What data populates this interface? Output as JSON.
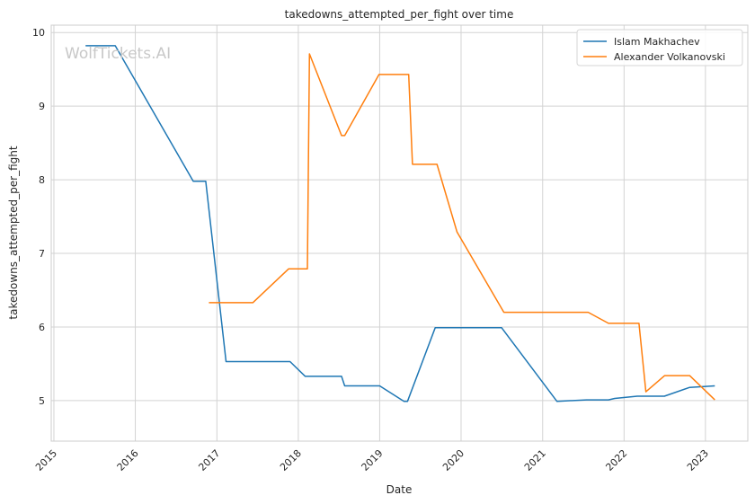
{
  "watermark": "WolfTickets.AI",
  "chart_data": {
    "type": "line",
    "title": "takedowns_attempted_per_fight over time",
    "xlabel": "Date",
    "ylabel": "takedowns_attempted_per_fight",
    "x_ticks": [
      "2015",
      "2016",
      "2017",
      "2018",
      "2019",
      "2020",
      "2021",
      "2022",
      "2023"
    ],
    "y_ticks": [
      5,
      6,
      7,
      8,
      9,
      10
    ],
    "xlim": [
      "2014-12-20",
      "2023-07-10"
    ],
    "ylim": [
      4.45,
      10.1
    ],
    "grid": true,
    "legend_position": "top-right",
    "series": [
      {
        "name": "Islam Makhachev",
        "color": "#1f77b4",
        "points": [
          [
            "2015-05-23",
            9.82
          ],
          [
            "2015-10-03",
            9.82
          ],
          [
            "2016-09-17",
            7.98
          ],
          [
            "2016-11-12",
            7.98
          ],
          [
            "2017-02-11",
            5.53
          ],
          [
            "2017-11-25",
            5.53
          ],
          [
            "2018-02-01",
            5.33
          ],
          [
            "2018-07-14",
            5.33
          ],
          [
            "2018-07-28",
            5.2
          ],
          [
            "2019-01-01",
            5.2
          ],
          [
            "2019-04-20",
            4.99
          ],
          [
            "2019-05-06",
            4.99
          ],
          [
            "2019-09-07",
            5.99
          ],
          [
            "2020-07-01",
            5.99
          ],
          [
            "2021-03-06",
            4.99
          ],
          [
            "2021-07-17",
            5.01
          ],
          [
            "2021-10-23",
            5.01
          ],
          [
            "2021-11-20",
            5.03
          ],
          [
            "2022-03-01",
            5.06
          ],
          [
            "2022-07-01",
            5.06
          ],
          [
            "2022-10-22",
            5.18
          ],
          [
            "2023-02-12",
            5.2
          ]
        ]
      },
      {
        "name": "Alexander Volkanovski",
        "color": "#ff7f0e",
        "points": [
          [
            "2016-11-26",
            6.33
          ],
          [
            "2017-06-11",
            6.33
          ],
          [
            "2017-11-19",
            6.79
          ],
          [
            "2018-02-11",
            6.79
          ],
          [
            "2018-02-20",
            9.71
          ],
          [
            "2018-07-14",
            8.6
          ],
          [
            "2018-07-28",
            8.6
          ],
          [
            "2018-12-29",
            9.43
          ],
          [
            "2019-05-11",
            9.43
          ],
          [
            "2019-05-28",
            8.21
          ],
          [
            "2019-09-15",
            8.21
          ],
          [
            "2019-12-14",
            7.29
          ],
          [
            "2020-07-11",
            6.2
          ],
          [
            "2021-07-24",
            6.2
          ],
          [
            "2021-10-23",
            6.05
          ],
          [
            "2022-03-09",
            6.05
          ],
          [
            "2022-04-09",
            5.12
          ],
          [
            "2022-07-02",
            5.34
          ],
          [
            "2022-10-22",
            5.34
          ],
          [
            "2023-02-12",
            5.01
          ]
        ]
      }
    ]
  }
}
